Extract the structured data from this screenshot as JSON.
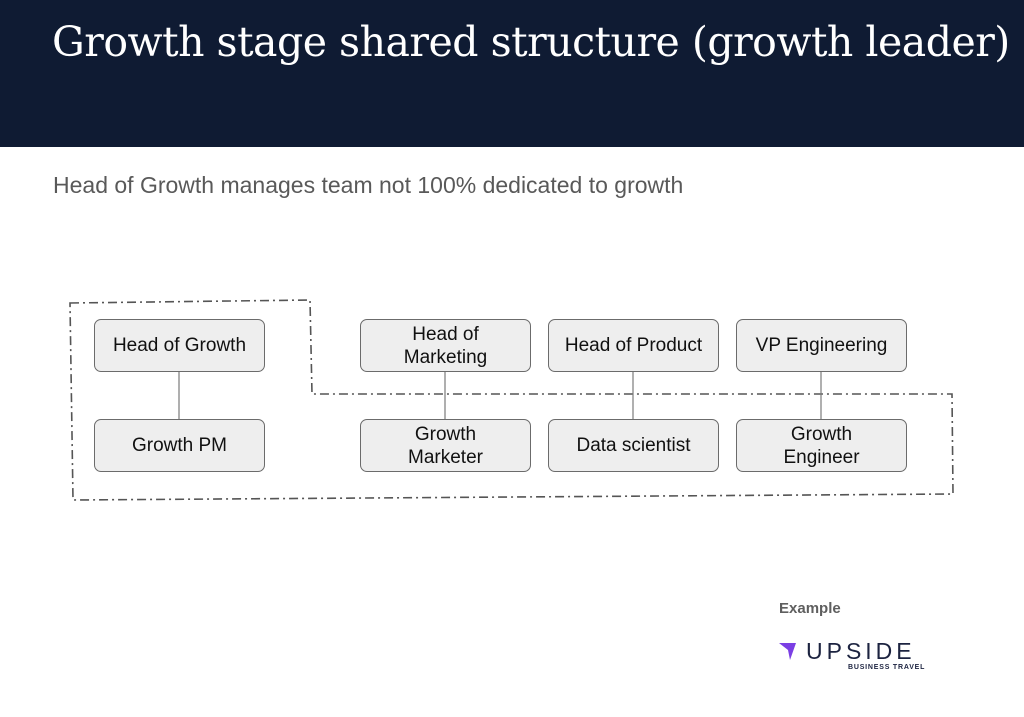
{
  "header": {
    "title": "Growth stage shared structure (growth leader)",
    "background_color": "#0f1b33"
  },
  "subtitle": "Head of Growth manages team not 100% dedicated to growth",
  "org_chart": {
    "leaders": [
      {
        "label": "Head of Growth"
      },
      {
        "label": "Head of\nMarketing"
      },
      {
        "label": "Head of Product"
      },
      {
        "label": "VP Engineering"
      }
    ],
    "reports": [
      {
        "label": "Growth PM"
      },
      {
        "label": "Growth\nMarketer"
      },
      {
        "label": "Data scientist"
      },
      {
        "label": "Growth\nEngineer"
      }
    ]
  },
  "footer": {
    "example_label": "Example",
    "logo": {
      "name": "UPSIDE",
      "tagline": "BUSINESS TRAVEL",
      "accent_color": "#7b3fe4"
    }
  }
}
